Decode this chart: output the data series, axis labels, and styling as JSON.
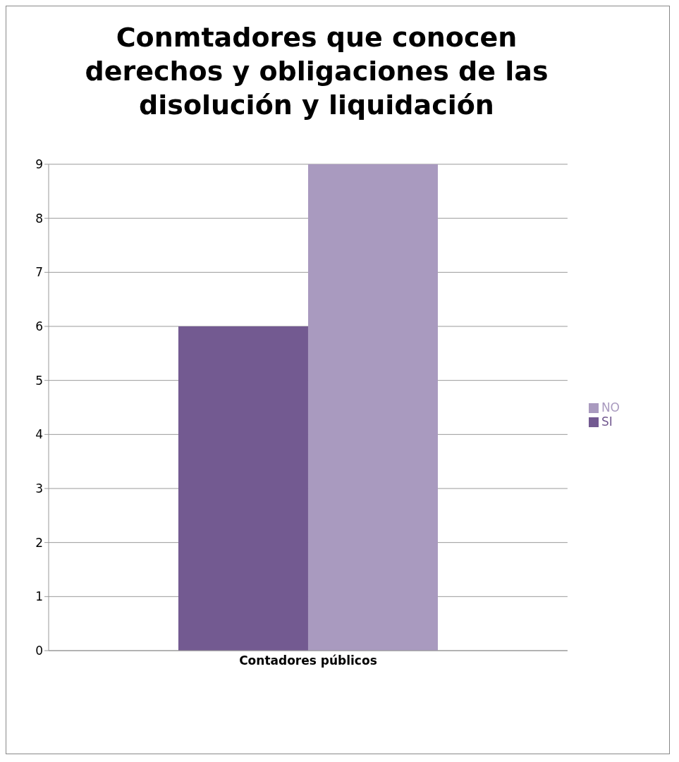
{
  "chart_data": {
    "type": "bar",
    "title": "Conmtadores que conocen derechos y obligaciones de las disolución  y liquidación",
    "categories": [
      "Contadores públicos"
    ],
    "series": [
      {
        "name": "SI",
        "color": "#735a91",
        "values": [
          6
        ]
      },
      {
        "name": "NO",
        "color": "#a99abf",
        "values": [
          9
        ]
      }
    ],
    "ylim": [
      0,
      9
    ],
    "yticks": [
      0,
      1,
      2,
      3,
      4,
      5,
      6,
      7,
      8,
      9
    ],
    "grid": "y",
    "legend": "right"
  }
}
